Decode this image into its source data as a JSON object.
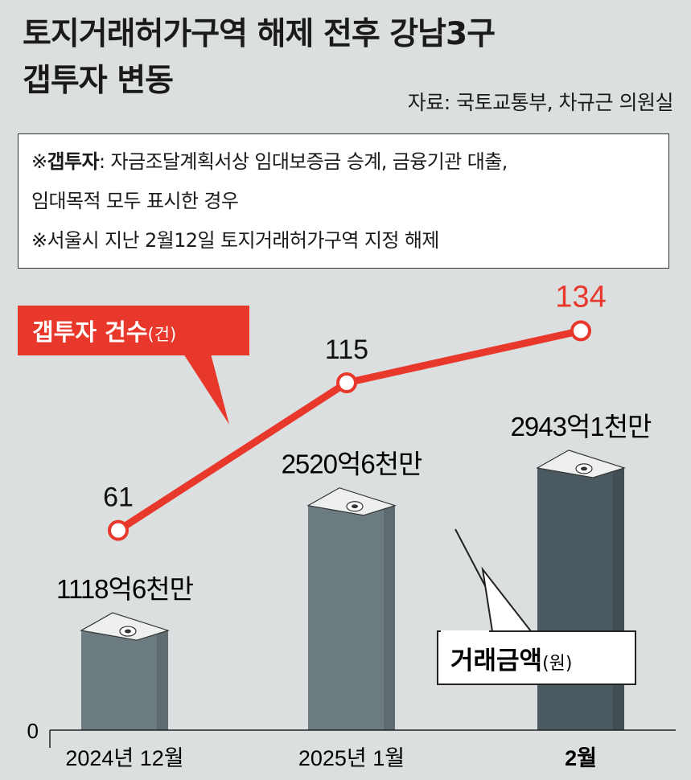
{
  "header": {
    "title_line1": "토지거래허가구역 해제 전후 강남3구",
    "title_line2": "갭투자 변동",
    "source": "자료: 국토교통부, 차규근 의원실"
  },
  "notes": {
    "note1_prefix": "※",
    "note1_term": "갭투자",
    "note1_rest": ": 자금조달계획서상 임대보증금 승계, 금융기관 대출,",
    "note1_cont": "임대목적 모두 표시한 경우",
    "note2": "※서울시 지난 2월12일 토지거래허가구역 지정 해제"
  },
  "chart_data": {
    "type": "bar",
    "categories": [
      "2024년 12월",
      "2025년 1월",
      "2월"
    ],
    "series": [
      {
        "name": "거래금액(원)",
        "type": "bar",
        "values": [
          1118.6,
          2520.6,
          2943.1
        ],
        "labels": [
          "1118억6천만",
          "2520억6천만",
          "2943억1천만"
        ],
        "colors": [
          "#6b7b80",
          "#6b7b80",
          "#4a5a60"
        ]
      },
      {
        "name": "갭투자 건수(건)",
        "type": "line",
        "values": [
          61,
          115,
          134
        ],
        "color": "#e8382b"
      }
    ],
    "axis_zero_label": "0",
    "legend_line_main": "갭투자 건수",
    "legend_line_unit": "(건)",
    "legend_bar_main": "거래금액",
    "legend_bar_unit": "(원)"
  }
}
